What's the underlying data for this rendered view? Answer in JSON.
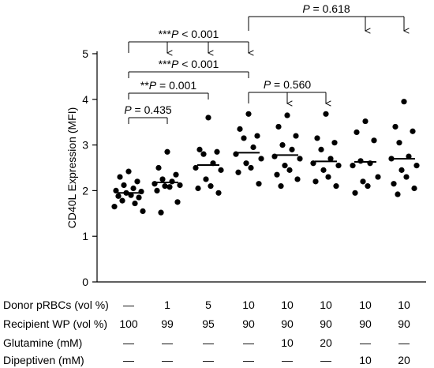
{
  "chart_data": {
    "type": "scatter",
    "ylabel": "CD40L Expression (MFI)",
    "ylim": [
      0,
      5
    ],
    "yticks": [
      "0",
      "1",
      "2",
      "3",
      "4",
      "5"
    ],
    "groups": [
      {
        "mean": 1.95,
        "points": [
          2.42,
          2.3,
          2.2,
          2.12,
          2.05,
          2.0,
          1.98,
          1.95,
          1.9,
          1.88,
          1.85,
          1.78,
          1.72,
          1.65,
          1.55
        ]
      },
      {
        "mean": 2.18,
        "points": [
          2.85,
          2.5,
          2.35,
          2.25,
          2.2,
          2.15,
          2.12,
          2.1,
          2.08,
          2.0,
          1.75,
          1.52
        ]
      },
      {
        "mean": 2.56,
        "points": [
          3.6,
          2.9,
          2.85,
          2.8,
          2.6,
          2.5,
          2.45,
          2.25,
          2.1,
          2.05,
          1.95
        ]
      },
      {
        "mean": 2.83,
        "points": [
          3.68,
          3.35,
          3.2,
          3.15,
          2.95,
          2.8,
          2.7,
          2.6,
          2.5,
          2.4,
          2.15
        ]
      },
      {
        "mean": 2.78,
        "points": [
          3.65,
          3.4,
          3.2,
          3.0,
          2.9,
          2.75,
          2.7,
          2.55,
          2.45,
          2.35,
          2.25,
          2.1
        ]
      },
      {
        "mean": 2.64,
        "points": [
          3.68,
          3.15,
          3.05,
          2.9,
          2.7,
          2.6,
          2.55,
          2.45,
          2.3,
          2.2,
          2.1
        ]
      },
      {
        "mean": 2.63,
        "points": [
          3.52,
          3.28,
          3.1,
          2.65,
          2.6,
          2.55,
          2.3,
          2.2,
          2.1,
          1.95
        ]
      },
      {
        "mean": 2.7,
        "points": [
          3.95,
          3.4,
          3.3,
          3.05,
          2.75,
          2.7,
          2.55,
          2.45,
          2.3,
          2.15,
          2.05,
          1.92
        ]
      }
    ],
    "comparisons": [
      {
        "label_prefix": "",
        "p": "P",
        "label_value": " = 0.618",
        "from": 3,
        "to": [
          7,
          6
        ],
        "level": 0
      },
      {
        "label_prefix": "***",
        "p": "P",
        "label_value": " < 0.001",
        "from": 0,
        "to": [
          3,
          2,
          1
        ],
        "level": 1
      },
      {
        "label_prefix": "***",
        "p": "P",
        "label_value": " < 0.001",
        "from": 0,
        "to": [
          3
        ],
        "level": 2,
        "noArrow": true
      },
      {
        "label_prefix": "**",
        "p": "P",
        "label_value": " = 0.001",
        "from": 0,
        "to": [
          2
        ],
        "level": 3,
        "noArrow": true
      },
      {
        "label_prefix": "",
        "p": "P",
        "label_value": " = 0.560",
        "from": 3,
        "to": [
          5,
          4
        ],
        "level": 3
      },
      {
        "label_prefix": "",
        "p": "P",
        "label_value": " = 0.435",
        "from": 0,
        "to": [
          1
        ],
        "level": 4,
        "noArrow": true
      }
    ],
    "table": {
      "rows": [
        {
          "label": "Donor pRBCs (vol %)",
          "values": [
            "—",
            "1",
            "5",
            "10",
            "10",
            "10",
            "10",
            "10"
          ]
        },
        {
          "label": "Recipient WP (vol %)",
          "values": [
            "100",
            "99",
            "95",
            "90",
            "90",
            "90",
            "90",
            "90"
          ]
        },
        {
          "label": "Glutamine (mM)",
          "values": [
            "—",
            "—",
            "—",
            "—",
            "10",
            "20",
            "—",
            "—"
          ]
        },
        {
          "label": "Dipeptiven (mM)",
          "values": [
            "—",
            "—",
            "—",
            "—",
            "—",
            "—",
            "10",
            "20"
          ]
        }
      ]
    }
  }
}
